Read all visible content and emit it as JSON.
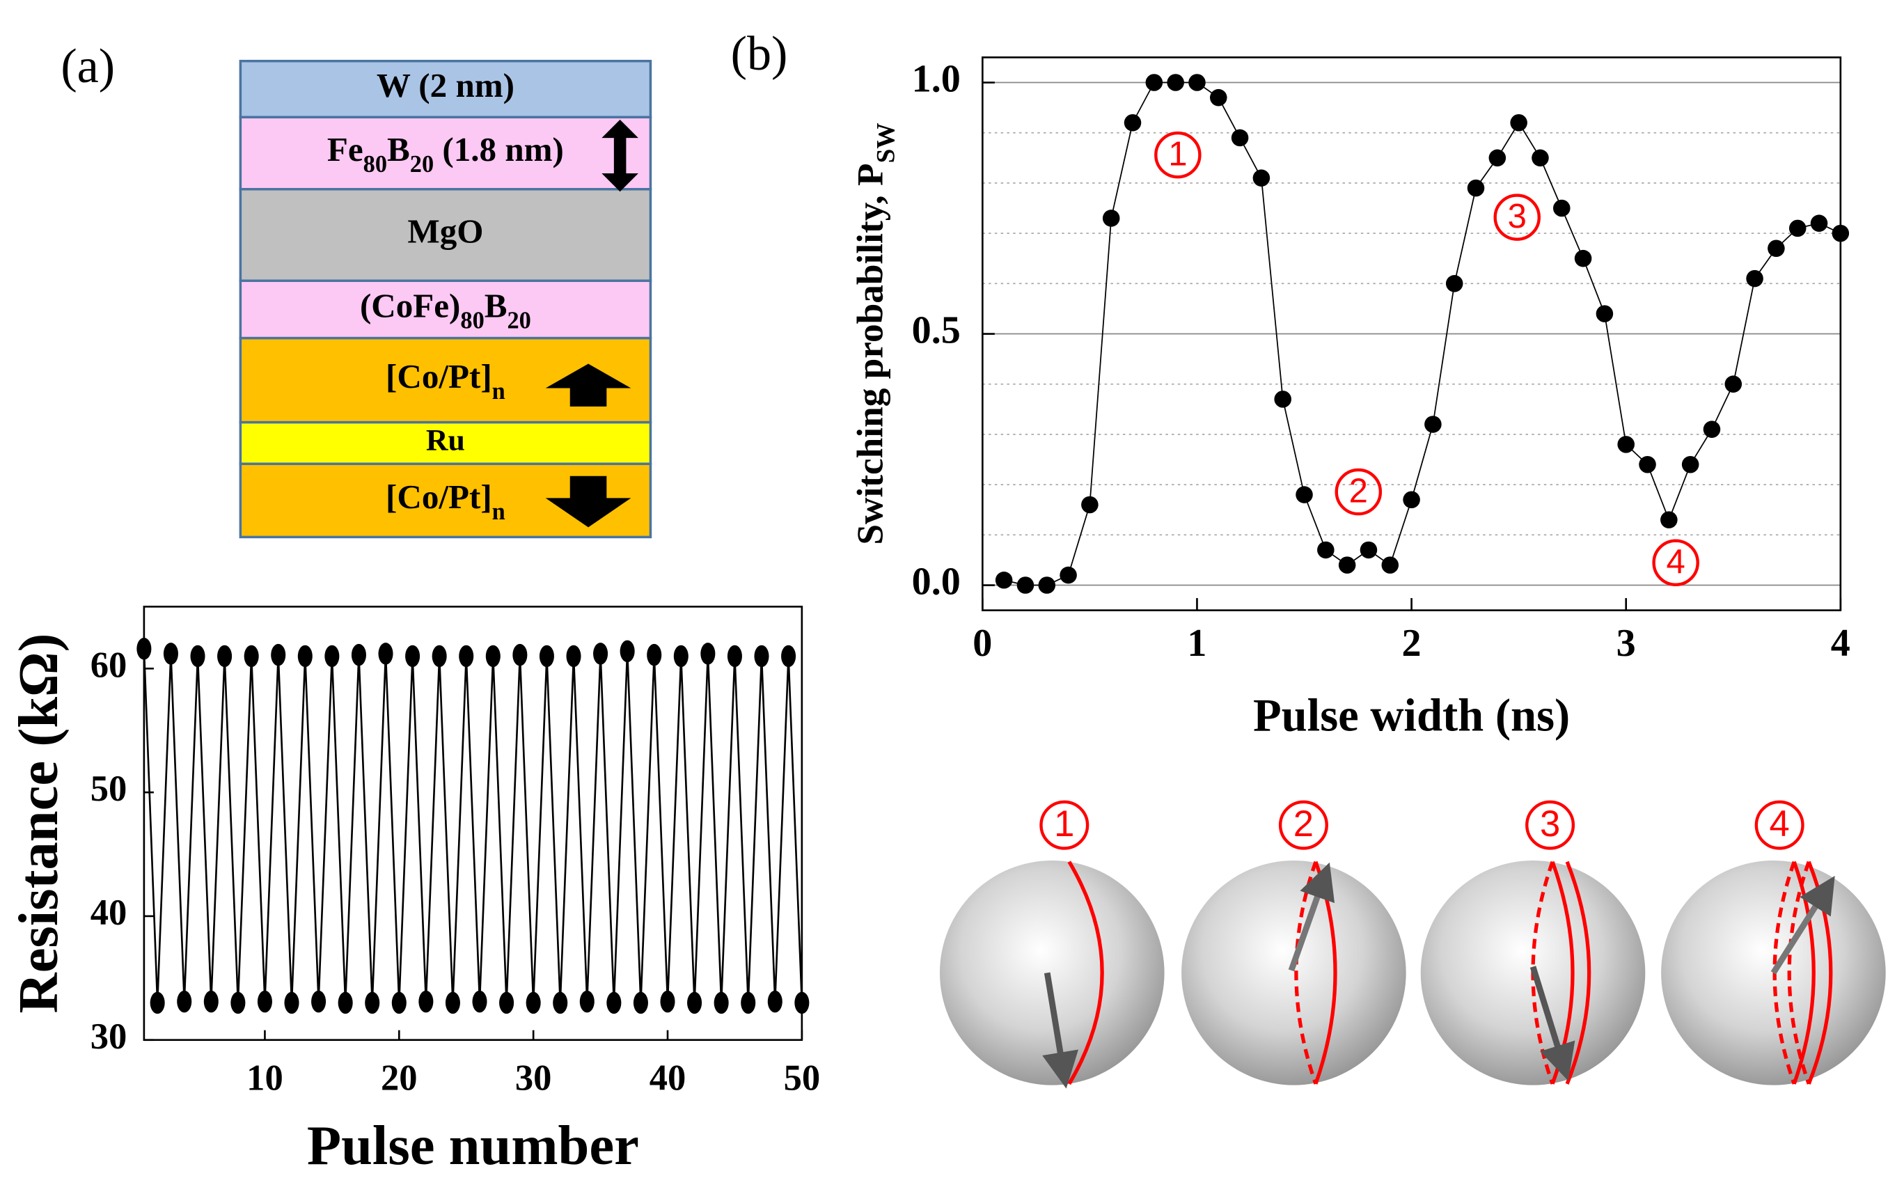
{
  "panel_labels": [
    "(a)",
    "(b)"
  ],
  "layer_stack": {
    "layers": [
      {
        "label": [
          {
            "text": "W (2 nm)"
          }
        ],
        "color": "#aac4e6"
      },
      {
        "label": [
          {
            "text": "Fe"
          },
          {
            "text": "80",
            "sub": true
          },
          {
            "text": "B"
          },
          {
            "text": "20",
            "sub": true
          },
          {
            "text": " (1.8 nm)"
          }
        ],
        "color": "#fcc8f4"
      },
      {
        "label": [
          {
            "text": "MgO"
          }
        ],
        "color": "#c0c0c0"
      },
      {
        "label": [
          {
            "text": "(CoFe)"
          },
          {
            "text": "80",
            "sub": true
          },
          {
            "text": "B"
          },
          {
            "text": "20",
            "sub": true
          }
        ],
        "color": "#fcc8f4"
      },
      {
        "label": [
          {
            "text": "[Co/Pt]"
          },
          {
            "text": "n",
            "sub": true
          }
        ],
        "color": "#ffc000"
      },
      {
        "label": [
          {
            "text": "Ru"
          }
        ],
        "color": "#ffff00"
      },
      {
        "label": [
          {
            "text": "[Co/Pt]"
          },
          {
            "text": "n",
            "sub": true
          }
        ],
        "color": "#ffc000"
      }
    ]
  },
  "chart_data": [
    {
      "type": "line",
      "markers": true,
      "color": "#000000",
      "xlabel": "Pulse number",
      "ylabel": [
        {
          "text": "Resistance (kΩ)"
        }
      ],
      "x": [
        1,
        2,
        3,
        4,
        5,
        6,
        7,
        8,
        9,
        10,
        11,
        12,
        13,
        14,
        15,
        16,
        17,
        18,
        19,
        20,
        21,
        22,
        23,
        24,
        25,
        26,
        27,
        28,
        29,
        30,
        31,
        32,
        33,
        34,
        35,
        36,
        37,
        38,
        39,
        40,
        41,
        42,
        43,
        44,
        45,
        46,
        47,
        48,
        49,
        50
      ],
      "values": [
        61.6,
        33.0,
        61.2,
        33.1,
        61.0,
        33.1,
        61.0,
        33.0,
        61.0,
        33.1,
        61.1,
        33.0,
        61.0,
        33.1,
        61.0,
        33.0,
        61.1,
        33.0,
        61.2,
        33.0,
        61.0,
        33.1,
        61.0,
        33.0,
        61.0,
        33.1,
        61.0,
        33.0,
        61.1,
        33.0,
        61.0,
        33.0,
        61.0,
        33.1,
        61.2,
        33.0,
        61.4,
        33.0,
        61.1,
        33.1,
        61.0,
        33.0,
        61.2,
        33.0,
        61.0,
        33.0,
        61.0,
        33.1,
        61.0,
        33.0
      ],
      "xlim": [
        1,
        50
      ],
      "ylim": [
        30,
        65
      ],
      "xticks": [
        10,
        20,
        30,
        40,
        50
      ],
      "yticks": [
        30,
        40,
        50,
        60
      ],
      "grid": false
    },
    {
      "type": "line",
      "markers": true,
      "color": "#000000",
      "xlabel": "Pulse width (ns)",
      "ylabel": [
        {
          "text": "Switching probability, P"
        },
        {
          "text": "SW",
          "sub": true
        }
      ],
      "x": [
        0.1,
        0.2,
        0.3,
        0.4,
        0.5,
        0.6,
        0.7,
        0.8,
        0.9,
        1.0,
        1.1,
        1.2,
        1.3,
        1.4,
        1.5,
        1.6,
        1.7,
        1.8,
        1.9,
        2.0,
        2.1,
        2.2,
        2.3,
        2.4,
        2.5,
        2.6,
        2.7,
        2.8,
        2.9,
        3.0,
        3.1,
        3.2,
        3.3,
        3.4,
        3.5,
        3.6,
        3.7,
        3.8,
        3.9,
        4.0
      ],
      "values": [
        0.01,
        0.0,
        0.0,
        0.02,
        0.16,
        0.73,
        0.92,
        1.0,
        1.0,
        1.0,
        0.97,
        0.89,
        0.81,
        0.37,
        0.18,
        0.07,
        0.04,
        0.07,
        0.04,
        0.17,
        0.32,
        0.6,
        0.79,
        0.85,
        0.92,
        0.85,
        0.75,
        0.65,
        0.54,
        0.28,
        0.24,
        0.13,
        0.24,
        0.31,
        0.4,
        0.61,
        0.67,
        0.71,
        0.72,
        0.7
      ],
      "xlim": [
        0,
        4
      ],
      "ylim": [
        -0.05,
        1.05
      ],
      "xticks": [
        0,
        1,
        2,
        3,
        4
      ],
      "yticks": [
        {
          "value": 0,
          "label": "0.0"
        },
        {
          "value": 0.5,
          "label": "0.5"
        },
        {
          "value": 1,
          "label": "1.0"
        }
      ],
      "minor_yticks": [
        0.1,
        0.2,
        0.3,
        0.4,
        0.6,
        0.7,
        0.8,
        0.9
      ],
      "grid": true,
      "annotations": [
        "1",
        "2",
        "3",
        "4"
      ],
      "annotation_color": "#ff0000"
    }
  ],
  "sphere_labels": [
    "1",
    "2",
    "3",
    "4"
  ]
}
